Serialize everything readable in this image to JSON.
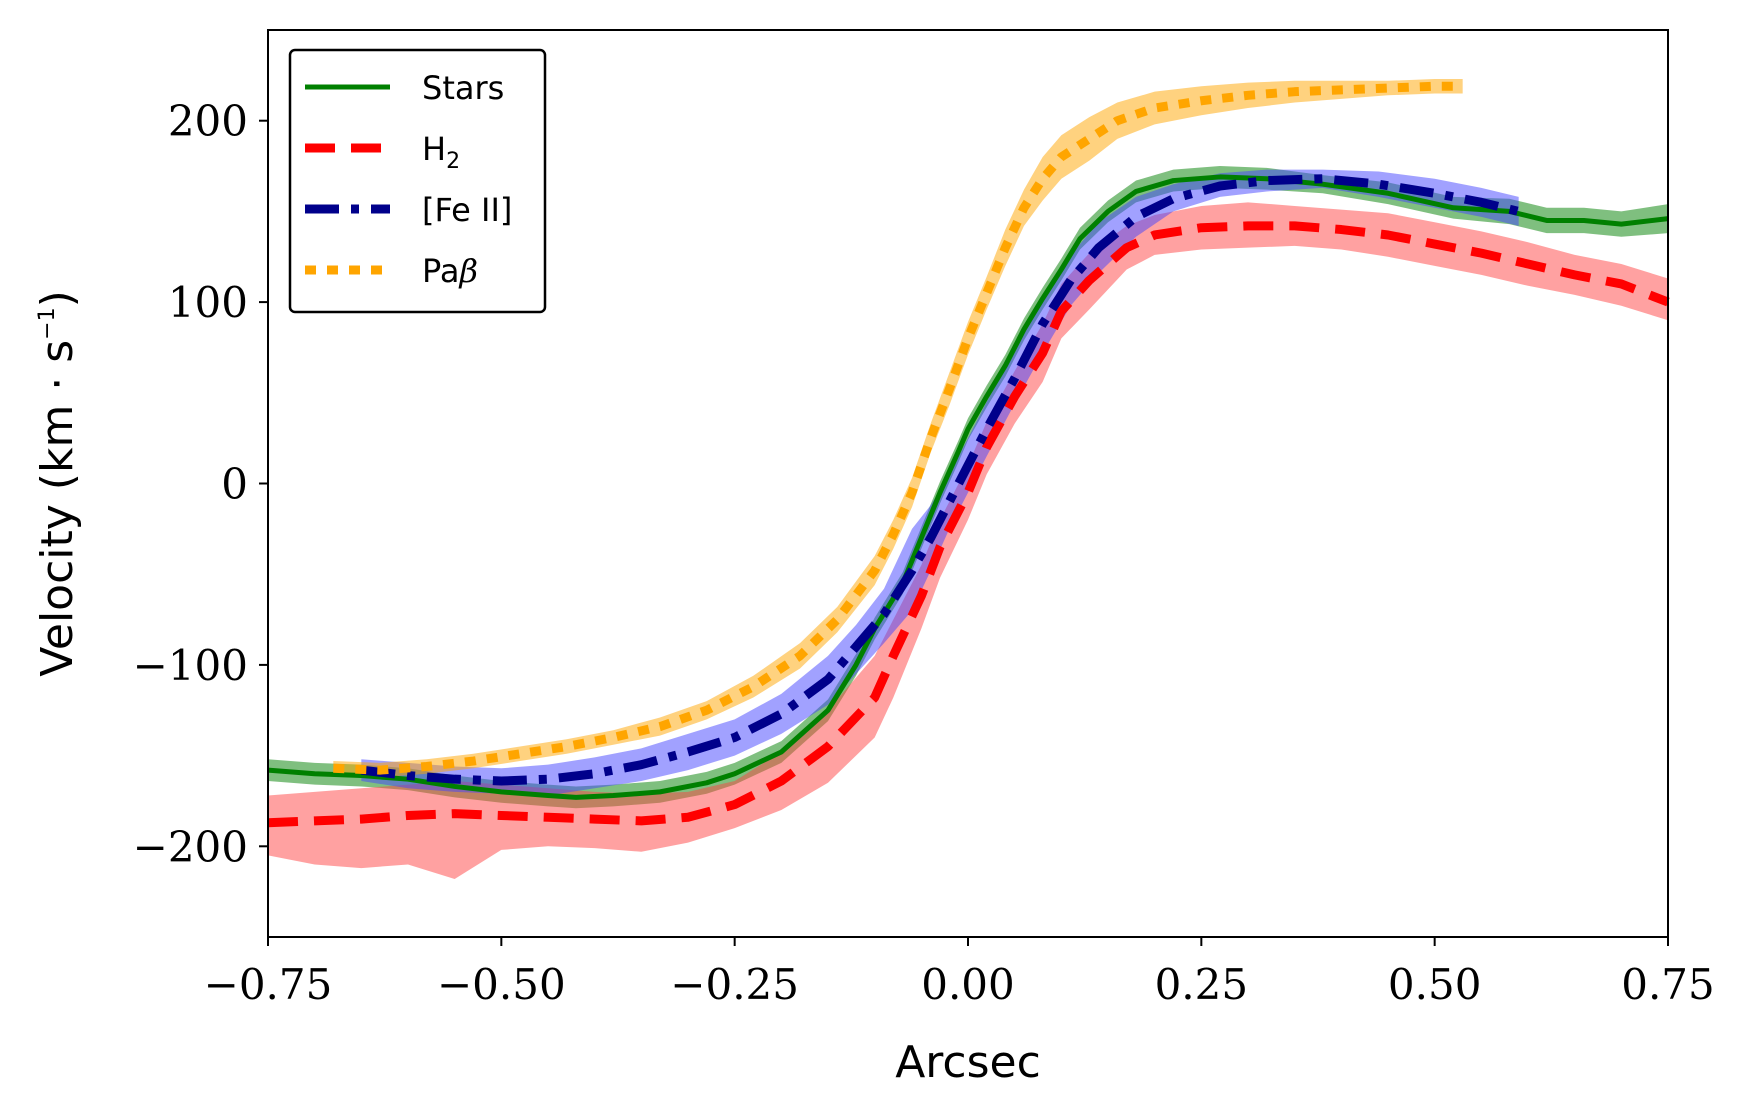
{
  "chart_data": {
    "type": "line",
    "title": "",
    "xlabel": "Arcsec",
    "ylabel": "Velocity (km · s",
    "ylabel_sup": "−1",
    "ylabel_end": ")",
    "xlim": [
      -0.75,
      0.75
    ],
    "ylim": [
      -250,
      250
    ],
    "xticks": [
      -0.75,
      -0.5,
      -0.25,
      0.0,
      0.25,
      0.5,
      0.75
    ],
    "xtick_labels": [
      "−0.75",
      "−0.50",
      "−0.25",
      "0.00",
      "0.25",
      "0.50",
      "0.75"
    ],
    "yticks": [
      -200,
      -100,
      0,
      100,
      200
    ],
    "ytick_labels": [
      "−200",
      "−100",
      "0",
      "100",
      "200"
    ],
    "grid": false,
    "legend_position": "top-left",
    "series": [
      {
        "name": "Stars",
        "legend_label": "Stars",
        "legend_sub": "",
        "color": "#008000",
        "band_color": "#008000",
        "style": "solid",
        "x": [
          -0.75,
          -0.7,
          -0.65,
          -0.6,
          -0.55,
          -0.5,
          -0.45,
          -0.42,
          -0.38,
          -0.33,
          -0.28,
          -0.25,
          -0.2,
          -0.15,
          -0.12,
          -0.1,
          -0.07,
          -0.05,
          -0.03,
          -0.01,
          0.0,
          0.02,
          0.04,
          0.06,
          0.08,
          0.1,
          0.12,
          0.15,
          0.18,
          0.22,
          0.27,
          0.32,
          0.38,
          0.45,
          0.52,
          0.58,
          0.62,
          0.66,
          0.7,
          0.75
        ],
        "y": [
          -158,
          -160,
          -161,
          -163,
          -167,
          -170,
          -172,
          -173,
          -172,
          -170,
          -165,
          -160,
          -148,
          -125,
          -100,
          -80,
          -55,
          -30,
          -5,
          18,
          30,
          48,
          65,
          85,
          102,
          118,
          135,
          150,
          161,
          167,
          169,
          168,
          165,
          160,
          152,
          150,
          145,
          145,
          143,
          146
        ],
        "band_lo": [
          -152,
          -154,
          -155,
          -157,
          -161,
          -164,
          -166,
          -167,
          -166,
          -164,
          -159,
          -154,
          -142,
          -119,
          -94,
          -74,
          -49,
          -24,
          1,
          24,
          36,
          54,
          71,
          91,
          108,
          124,
          141,
          156,
          167,
          173,
          175,
          174,
          170,
          166,
          158,
          157,
          152,
          152,
          150,
          154
        ],
        "band_hi": [
          -164,
          -166,
          -167,
          -169,
          -173,
          -176,
          -178,
          -179,
          -178,
          -176,
          -171,
          -166,
          -154,
          -131,
          -106,
          -86,
          -61,
          -36,
          -11,
          12,
          24,
          42,
          59,
          79,
          96,
          112,
          129,
          144,
          155,
          161,
          163,
          162,
          160,
          154,
          146,
          143,
          138,
          138,
          136,
          138
        ]
      },
      {
        "name": "H2",
        "legend_label": "H",
        "legend_sub": "2",
        "color": "#ff0000",
        "band_color": "#ff4444",
        "style": "dashed",
        "x": [
          -0.75,
          -0.7,
          -0.65,
          -0.6,
          -0.55,
          -0.5,
          -0.45,
          -0.4,
          -0.35,
          -0.3,
          -0.25,
          -0.2,
          -0.15,
          -0.1,
          -0.08,
          -0.05,
          -0.03,
          0.0,
          0.02,
          0.05,
          0.08,
          0.1,
          0.13,
          0.17,
          0.2,
          0.25,
          0.3,
          0.35,
          0.4,
          0.45,
          0.5,
          0.55,
          0.6,
          0.65,
          0.7,
          0.75
        ],
        "y": [
          -187,
          -186,
          -185,
          -183,
          -182,
          -183,
          -184,
          -185,
          -186,
          -184,
          -177,
          -164,
          -145,
          -118,
          -95,
          -62,
          -35,
          -5,
          20,
          48,
          72,
          95,
          112,
          130,
          137,
          141,
          142,
          142,
          140,
          137,
          132,
          127,
          121,
          115,
          110,
          100
        ],
        "band_lo": [
          -172,
          -170,
          -168,
          -166,
          -164,
          -166,
          -168,
          -170,
          -171,
          -170,
          -164,
          -148,
          -125,
          -95,
          -75,
          -45,
          -20,
          10,
          34,
          62,
          88,
          110,
          127,
          142,
          148,
          153,
          155,
          153,
          151,
          149,
          144,
          139,
          133,
          126,
          121,
          113
        ],
        "band_hi": [
          -205,
          -210,
          -212,
          -210,
          -218,
          -202,
          -200,
          -201,
          -203,
          -198,
          -190,
          -180,
          -165,
          -140,
          -118,
          -80,
          -52,
          -20,
          5,
          33,
          56,
          80,
          96,
          118,
          126,
          129,
          130,
          131,
          129,
          125,
          120,
          115,
          109,
          104,
          98,
          90
        ]
      },
      {
        "name": "[Fe II]",
        "legend_label": "[Fe II]",
        "legend_sub": "",
        "color": "#00008b",
        "band_color": "#4444ff",
        "style": "dashdot",
        "x": [
          -0.65,
          -0.6,
          -0.55,
          -0.5,
          -0.45,
          -0.4,
          -0.35,
          -0.3,
          -0.25,
          -0.2,
          -0.15,
          -0.12,
          -0.09,
          -0.06,
          -0.04,
          -0.02,
          0.0,
          0.02,
          0.05,
          0.08,
          0.11,
          0.14,
          0.18,
          0.22,
          0.27,
          0.32,
          0.38,
          0.44,
          0.5,
          0.55,
          0.59
        ],
        "y": [
          -158,
          -161,
          -163,
          -164,
          -163,
          -160,
          -155,
          -148,
          -140,
          -127,
          -108,
          -90,
          -72,
          -48,
          -30,
          -10,
          10,
          30,
          58,
          88,
          112,
          130,
          147,
          157,
          164,
          167,
          168,
          165,
          160,
          155,
          150
        ],
        "band_lo": [
          -152,
          -154,
          -156,
          -157,
          -155,
          -151,
          -146,
          -138,
          -130,
          -116,
          -95,
          -78,
          -58,
          -25,
          -12,
          5,
          25,
          45,
          72,
          103,
          126,
          144,
          158,
          165,
          171,
          173,
          173,
          172,
          168,
          163,
          158
        ],
        "band_hi": [
          -164,
          -168,
          -170,
          -171,
          -172,
          -168,
          -164,
          -158,
          -150,
          -138,
          -122,
          -105,
          -88,
          -70,
          -48,
          -25,
          -5,
          15,
          44,
          72,
          98,
          116,
          136,
          150,
          158,
          161,
          163,
          158,
          152,
          147,
          142
        ]
      },
      {
        "name": "Pabeta",
        "legend_label": "Pa",
        "legend_sub": "",
        "legend_greek": "β",
        "color": "#ffa500",
        "band_color": "#ffa500",
        "style": "dotted",
        "x": [
          -0.68,
          -0.63,
          -0.58,
          -0.53,
          -0.48,
          -0.43,
          -0.38,
          -0.33,
          -0.28,
          -0.23,
          -0.18,
          -0.14,
          -0.1,
          -0.08,
          -0.06,
          -0.04,
          -0.02,
          0.0,
          0.02,
          0.04,
          0.06,
          0.08,
          0.1,
          0.13,
          0.16,
          0.2,
          0.25,
          0.3,
          0.35,
          0.4,
          0.45,
          0.5,
          0.53
        ],
        "y": [
          -157,
          -158,
          -156,
          -153,
          -149,
          -145,
          -140,
          -134,
          -125,
          -112,
          -95,
          -75,
          -48,
          -28,
          -5,
          25,
          52,
          80,
          105,
          130,
          152,
          168,
          180,
          190,
          200,
          207,
          211,
          214,
          216,
          217,
          218,
          219,
          219
        ],
        "band_lo": [
          -153,
          -154,
          -152,
          -149,
          -145,
          -141,
          -136,
          -129,
          -120,
          -106,
          -88,
          -68,
          -40,
          -20,
          3,
          33,
          61,
          89,
          114,
          140,
          162,
          180,
          192,
          202,
          210,
          216,
          219,
          221,
          222,
          222,
          222,
          223,
          223
        ],
        "band_hi": [
          -161,
          -162,
          -160,
          -157,
          -153,
          -149,
          -144,
          -139,
          -130,
          -118,
          -102,
          -82,
          -56,
          -36,
          -13,
          17,
          43,
          71,
          96,
          120,
          142,
          156,
          168,
          178,
          190,
          198,
          203,
          207,
          210,
          212,
          214,
          215,
          215
        ]
      }
    ]
  }
}
